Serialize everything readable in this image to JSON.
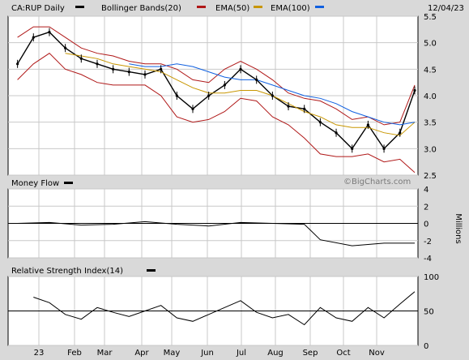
{
  "header": {
    "symbol_label": "CA:RUP Daily",
    "date": "12/04/23"
  },
  "legend": {
    "price": "CA:RUP Daily",
    "bollinger": "Bollinger Bands(20)",
    "ema50": "EMA(50)",
    "ema100": "EMA(100)"
  },
  "watermark": "©BigCharts.com",
  "colors": {
    "background": "#ffffff",
    "frame": "#d9d9d9",
    "grid": "#c8c8c8",
    "price": "#000000",
    "bollinger": "#b01818",
    "ema50": "#c89600",
    "ema100": "#1060e0"
  },
  "chart_data": [
    {
      "type": "line",
      "title": "CA:RUP Daily",
      "x": [
        "2022-12-20",
        "2023-01-03",
        "2023-01-17",
        "2023-01-31",
        "2023-02-14",
        "2023-02-28",
        "2023-03-14",
        "2023-03-28",
        "2023-04-11",
        "2023-04-25",
        "2023-05-09",
        "2023-05-23",
        "2023-06-06",
        "2023-06-20",
        "2023-07-04",
        "2023-07-18",
        "2023-08-01",
        "2023-08-15",
        "2023-08-29",
        "2023-09-12",
        "2023-09-26",
        "2023-10-10",
        "2023-10-24",
        "2023-11-07",
        "2023-11-21",
        "2023-12-04"
      ],
      "series": [
        {
          "name": "CA:RUP Daily",
          "values": [
            4.6,
            5.1,
            5.2,
            4.9,
            4.7,
            4.6,
            4.5,
            4.45,
            4.4,
            4.5,
            4.0,
            3.75,
            4.0,
            4.2,
            4.5,
            4.3,
            4.0,
            3.8,
            3.75,
            3.5,
            3.3,
            3.0,
            3.45,
            3.0,
            3.3,
            4.1
          ]
        },
        {
          "name": "Bollinger Bands(20) upper",
          "values": [
            5.1,
            5.3,
            5.3,
            5.1,
            4.9,
            4.8,
            4.75,
            4.65,
            4.6,
            4.6,
            4.5,
            4.3,
            4.25,
            4.5,
            4.65,
            4.5,
            4.3,
            4.05,
            3.95,
            3.9,
            3.75,
            3.55,
            3.6,
            3.45,
            3.5,
            4.2
          ]
        },
        {
          "name": "Bollinger Bands(20) lower",
          "values": [
            4.3,
            4.6,
            4.8,
            4.5,
            4.4,
            4.25,
            4.2,
            4.2,
            4.2,
            4.0,
            3.6,
            3.5,
            3.55,
            3.7,
            3.95,
            3.9,
            3.6,
            3.45,
            3.2,
            2.9,
            2.85,
            2.85,
            2.9,
            2.75,
            2.8,
            2.55
          ]
        },
        {
          "name": "EMA(50)",
          "values": [
            null,
            null,
            null,
            4.8,
            4.75,
            4.7,
            4.6,
            4.55,
            4.5,
            4.45,
            4.3,
            4.15,
            4.05,
            4.05,
            4.1,
            4.1,
            4.0,
            3.85,
            3.7,
            3.6,
            3.45,
            3.4,
            3.4,
            3.3,
            3.25,
            3.5
          ]
        },
        {
          "name": "EMA(100)",
          "values": [
            null,
            null,
            null,
            null,
            null,
            null,
            null,
            4.6,
            4.55,
            4.55,
            4.6,
            4.55,
            4.45,
            4.35,
            4.3,
            4.3,
            4.2,
            4.1,
            4.0,
            3.95,
            3.85,
            3.7,
            3.6,
            3.5,
            3.45,
            3.5
          ]
        }
      ],
      "ylim": [
        2.5,
        5.5
      ],
      "yticks": [
        "2.5",
        "3.0",
        "3.5",
        "4.0",
        "4.5",
        "5.0",
        "5.5"
      ],
      "grid": true,
      "legend": "top"
    },
    {
      "type": "line",
      "title": "Money Flow",
      "ylabel": "Millions",
      "x": [
        "2022-12-20",
        "2023-01-17",
        "2023-02-14",
        "2023-03-14",
        "2023-04-11",
        "2023-05-09",
        "2023-06-06",
        "2023-07-04",
        "2023-08-01",
        "2023-08-29",
        "2023-09-12",
        "2023-10-10",
        "2023-11-07",
        "2023-12-04"
      ],
      "series": [
        {
          "name": "Money Flow",
          "values": [
            0,
            0.1,
            -0.2,
            -0.1,
            0.2,
            -0.1,
            -0.3,
            0.1,
            0,
            -0.1,
            -1.9,
            -2.6,
            -2.3,
            -2.3
          ]
        }
      ],
      "ylim": [
        -4,
        4
      ],
      "yticks": [
        "-4",
        "-2",
        "0",
        "2",
        "4"
      ]
    },
    {
      "type": "line",
      "title": "Relative Strength Index(14)",
      "x": [
        "2023-01-03",
        "2023-01-17",
        "2023-01-31",
        "2023-02-14",
        "2023-02-28",
        "2023-03-14",
        "2023-03-28",
        "2023-04-11",
        "2023-04-25",
        "2023-05-09",
        "2023-05-23",
        "2023-06-06",
        "2023-06-20",
        "2023-07-04",
        "2023-07-18",
        "2023-08-01",
        "2023-08-15",
        "2023-08-29",
        "2023-09-12",
        "2023-09-26",
        "2023-10-10",
        "2023-10-24",
        "2023-11-07",
        "2023-11-21",
        "2023-12-04"
      ],
      "series": [
        {
          "name": "Relative Strength Index(14)",
          "values": [
            70,
            62,
            45,
            38,
            55,
            48,
            42,
            50,
            58,
            40,
            35,
            45,
            55,
            65,
            48,
            40,
            45,
            30,
            55,
            40,
            35,
            55,
            40,
            60,
            78
          ]
        }
      ],
      "ylim": [
        0,
        100
      ],
      "yticks": [
        "0",
        "50",
        "100"
      ]
    }
  ],
  "months": [
    "23",
    "Feb",
    "Mar",
    "Apr",
    "May",
    "Jun",
    "Jul",
    "Aug",
    "Sep",
    "Oct",
    "Nov"
  ]
}
